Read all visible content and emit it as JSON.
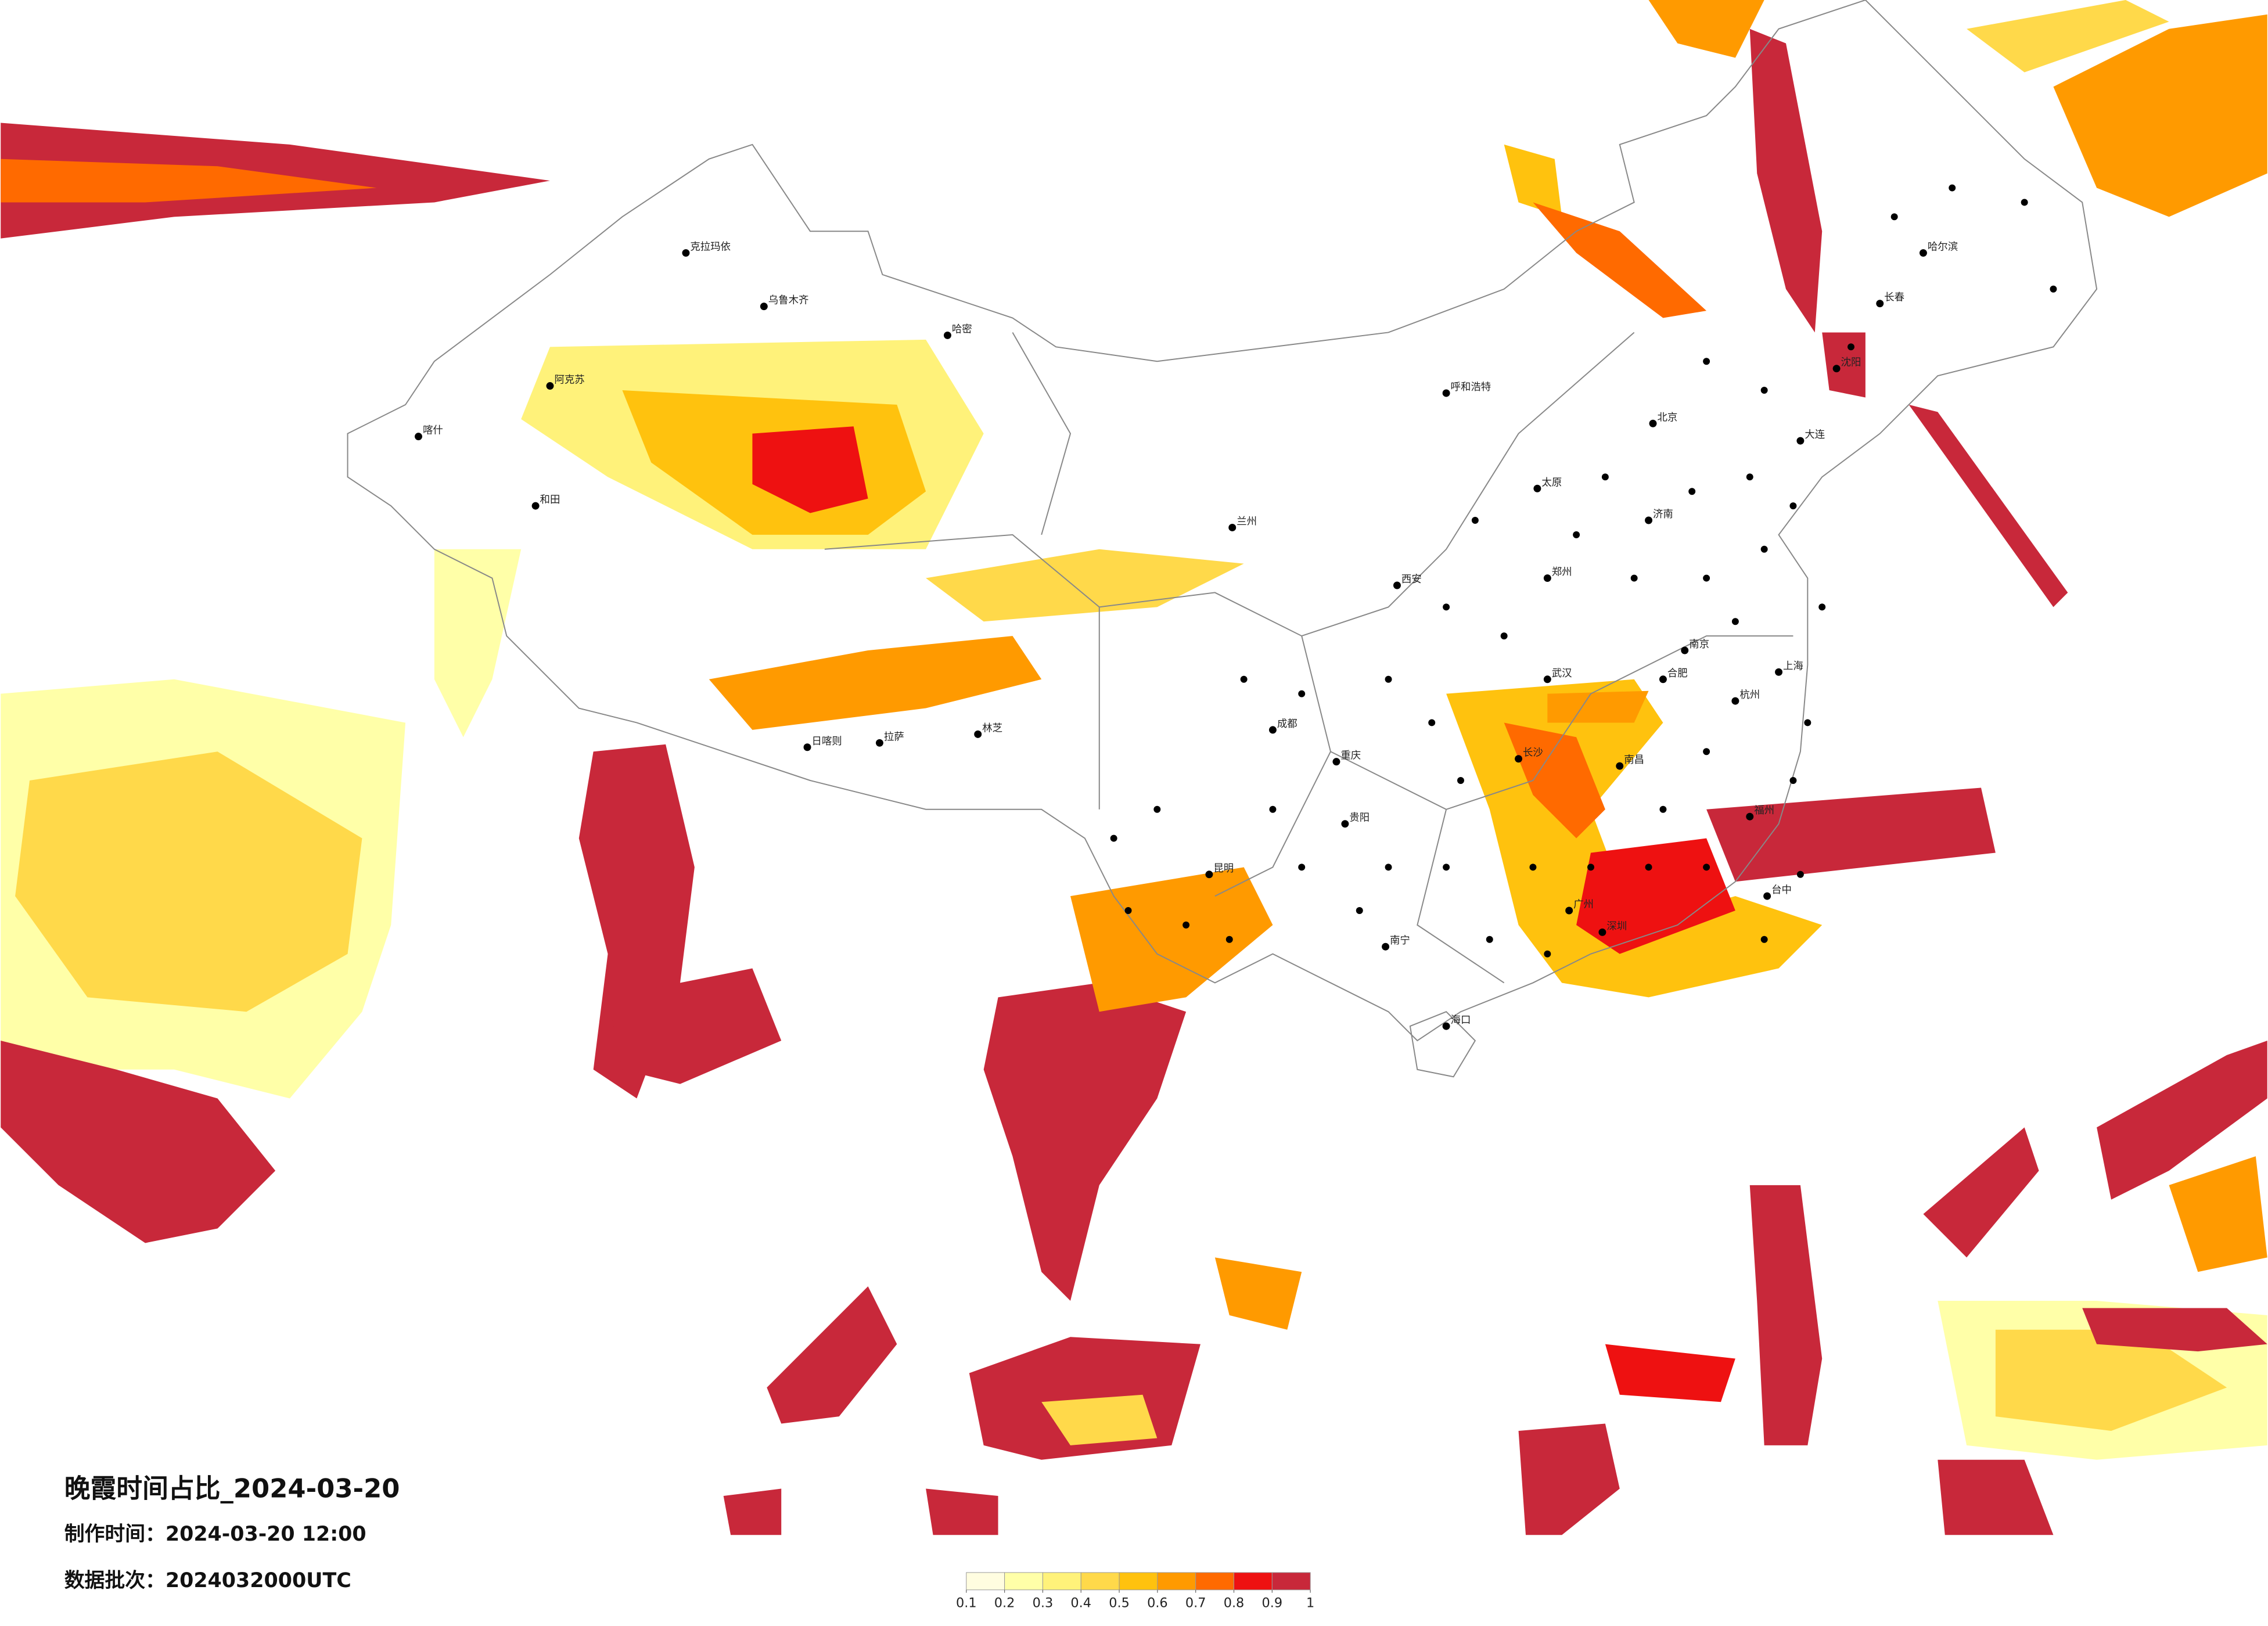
{
  "header": {
    "title": "晚霞时间占比_2024-03-20",
    "made_time": "制作时间：2024-03-20 12:00",
    "batch": "数据批次：2024032000UTC"
  },
  "legend": {
    "ticks": [
      0.1,
      0.2,
      0.3,
      0.4,
      0.5,
      0.6,
      0.7,
      0.8,
      0.9,
      1
    ],
    "colors": [
      "#fffde0",
      "#ffffa8",
      "#fff27a",
      "#ffd94a",
      "#ffc20e",
      "#ff9a00",
      "#ff6a00",
      "#ee1111",
      "#c8283a"
    ]
  },
  "cities": [
    "克拉玛依",
    "乌鲁木齐",
    "阿克苏",
    "喀什",
    "和田",
    "哈密",
    "拉萨",
    "日喀则",
    "林芝",
    "呼和浩特",
    "北京",
    "太原",
    "西安",
    "兰州",
    "成都",
    "重庆",
    "昆明",
    "贵阳",
    "南宁",
    "武汉",
    "长沙",
    "南京",
    "上海",
    "杭州",
    "福州",
    "广州",
    "深圳",
    "海口",
    "哈尔滨",
    "长春",
    "沈阳",
    "大连",
    "济南",
    "郑州",
    "合肥",
    "南昌",
    "台中"
  ]
}
